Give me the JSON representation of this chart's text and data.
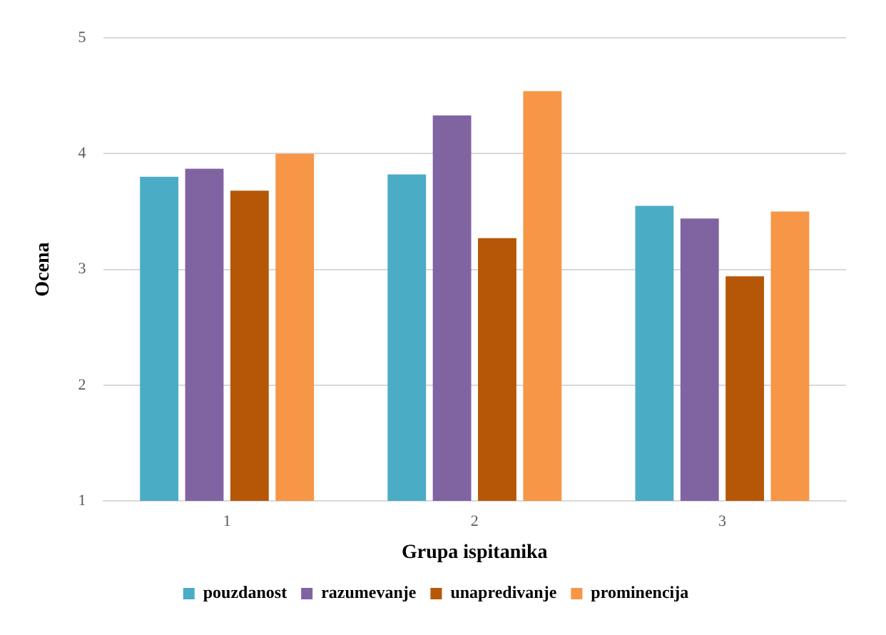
{
  "chart_data": {
    "type": "bar",
    "xlabel": "Grupa ispitanika",
    "ylabel": "Ocena",
    "categories": [
      "1",
      "2",
      "3"
    ],
    "series": [
      {
        "name": "pouzdanost",
        "color": "#4bacc6",
        "values": [
          3.8,
          3.82,
          3.55
        ]
      },
      {
        "name": "razumevanje",
        "color": "#8064a2",
        "values": [
          3.87,
          4.33,
          3.44
        ]
      },
      {
        "name": "unapredivanje",
        "color": "#b65708",
        "values": [
          3.68,
          3.27,
          2.94
        ]
      },
      {
        "name": "prominencija",
        "color": "#f79646",
        "values": [
          4.0,
          4.54,
          3.5
        ]
      }
    ],
    "ylim": [
      1,
      5
    ],
    "yticks": [
      1,
      2,
      3,
      4,
      5
    ],
    "grid": "y",
    "legend": "bottom"
  }
}
